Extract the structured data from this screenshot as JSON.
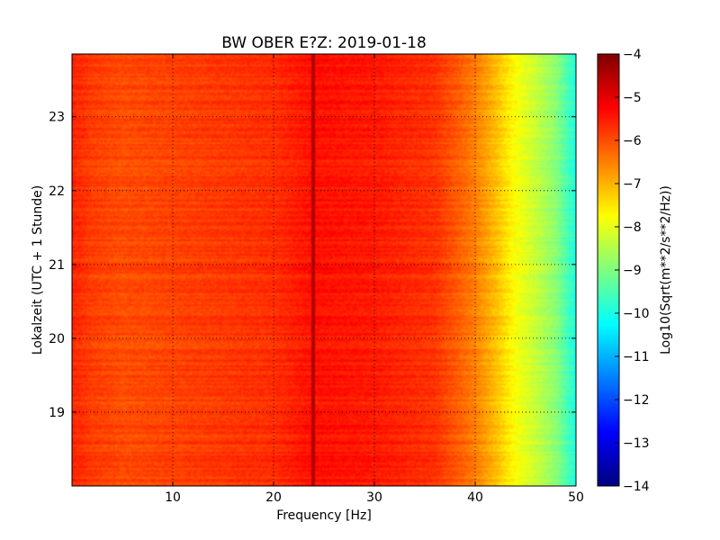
{
  "chart_data": {
    "type": "heatmap",
    "title": "BW OBER E?Z: 2019-01-18",
    "xlabel": "Frequency [Hz]",
    "ylabel": "Lokalzeit (UTC + 1 Stunde)",
    "xlim": [
      0,
      50
    ],
    "ylim": [
      23.85,
      18.0
    ],
    "x_ticks": [
      10,
      20,
      30,
      40,
      50
    ],
    "y_ticks": [
      19,
      20,
      21,
      22,
      23
    ],
    "grid": true,
    "colorbar": {
      "label": "Log10(Sqrt(m**2/s**2/Hz))",
      "range": [
        -14,
        -4
      ],
      "ticks": [
        -14,
        -13,
        -12,
        -11,
        -10,
        -9,
        -8,
        -7,
        -6,
        -5,
        -4
      ],
      "colormap": "jet"
    },
    "baseline_profile": {
      "frequency_hz": [
        0,
        2,
        5,
        10,
        20,
        24,
        30,
        36,
        38,
        40,
        42,
        44,
        46,
        48,
        50
      ],
      "log10_amplitude": [
        -5.6,
        -5.85,
        -6.0,
        -5.9,
        -5.7,
        -5.4,
        -5.5,
        -5.75,
        -6.1,
        -6.5,
        -7.1,
        -7.8,
        -8.3,
        -8.9,
        -10.0
      ]
    },
    "dark_bands": [
      {
        "time": 18.1,
        "fmin": 10,
        "fmax": 50,
        "level": -5.3
      },
      {
        "time": 18.25,
        "fmin": 0,
        "fmax": 5,
        "level": -4.5
      },
      {
        "time": 18.75,
        "fmin": 15,
        "fmax": 42,
        "level": -4.6
      },
      {
        "time": 18.82,
        "fmin": 0,
        "fmax": 42,
        "level": -4.9
      },
      {
        "time": 19.22,
        "fmin": 15,
        "fmax": 38,
        "level": -4.4
      },
      {
        "time": 19.95,
        "fmin": 20,
        "fmax": 45,
        "level": -5.0
      },
      {
        "time": 20.45,
        "fmin": 20,
        "fmax": 40,
        "level": -4.8
      },
      {
        "time": 20.6,
        "fmin": 10,
        "fmax": 45,
        "level": -5.1
      },
      {
        "time": 21.0,
        "fmin": 15,
        "fmax": 40,
        "level": -5.0
      },
      {
        "time": 21.32,
        "fmin": 10,
        "fmax": 45,
        "level": -4.9
      },
      {
        "time": 21.6,
        "fmin": 20,
        "fmax": 40,
        "level": -5.1
      },
      {
        "time": 21.82,
        "fmin": 0,
        "fmax": 38,
        "level": -4.3
      },
      {
        "time": 22.05,
        "fmin": 20,
        "fmax": 40,
        "level": -4.7
      },
      {
        "time": 22.35,
        "fmin": 20,
        "fmax": 40,
        "level": -5.0
      },
      {
        "time": 22.65,
        "fmin": 20,
        "fmax": 40,
        "level": -5.1
      },
      {
        "time": 23.15,
        "fmin": 20,
        "fmax": 40,
        "level": -5.1
      },
      {
        "time": 23.7,
        "fmin": 10,
        "fmax": 50,
        "level": -4.8
      }
    ],
    "vertical_lines": [
      {
        "frequency_hz": 24,
        "level": -4.5
      }
    ]
  }
}
